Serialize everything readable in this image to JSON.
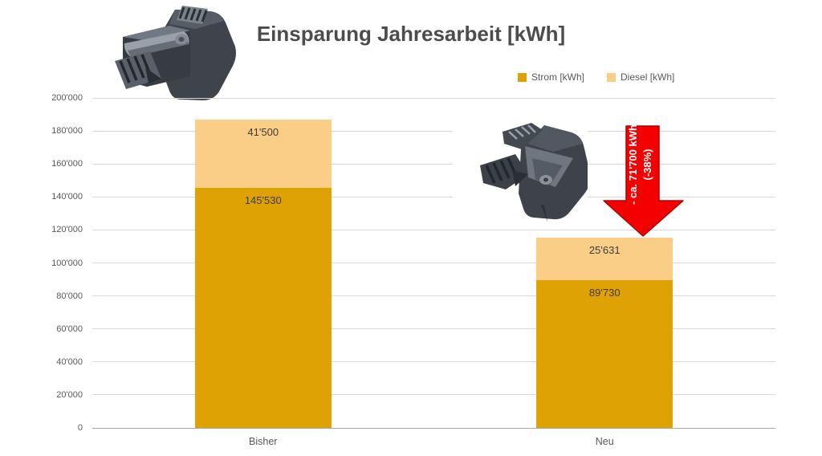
{
  "title": "Einsparung Jahresarbeit [kWh]",
  "chart_data": {
    "type": "bar",
    "stacked": true,
    "title": "Einsparung Jahresarbeit [kWh]",
    "categories": [
      "Bisher",
      "Neu"
    ],
    "series": [
      {
        "name": "Strom [kWh]",
        "color": "#DFA204",
        "values": [
          145530,
          89730
        ],
        "value_labels": [
          "145'530",
          "89'730"
        ]
      },
      {
        "name": "Diesel [kWh]",
        "color": "#FBCE88",
        "values": [
          41500,
          25631
        ],
        "value_labels": [
          "41'500",
          "25'631"
        ]
      }
    ],
    "totals": [
      187030,
      115361
    ],
    "ylim": [
      0,
      200000
    ],
    "ytick_step": 20000,
    "ytick_labels": [
      "0",
      "20'000",
      "40'000",
      "60'000",
      "80'000",
      "100'000",
      "120'000",
      "140'000",
      "160'000",
      "180'000",
      "200'000"
    ],
    "grid": true,
    "legend_position": "top-right"
  },
  "annotation": {
    "arrow_label_line1": "- ca. 71'700 kWh",
    "arrow_label_line2": "(-38%)",
    "arrow_color": "#F40000",
    "arrow_border_color": "#B40000",
    "text_color": "#FFFFFF"
  },
  "images": {
    "part_top_left": "cad-render-toolholder-solid",
    "part_middle": "cad-render-toolholder-lightweight"
  },
  "colors": {
    "title_text": "#4C4C4C",
    "axis_text": "#595959",
    "gridline": "#D9D9D9",
    "axis_line": "#A6A6A6",
    "value_label_text": "#3B3B3B",
    "background": "#FFFFFF"
  }
}
